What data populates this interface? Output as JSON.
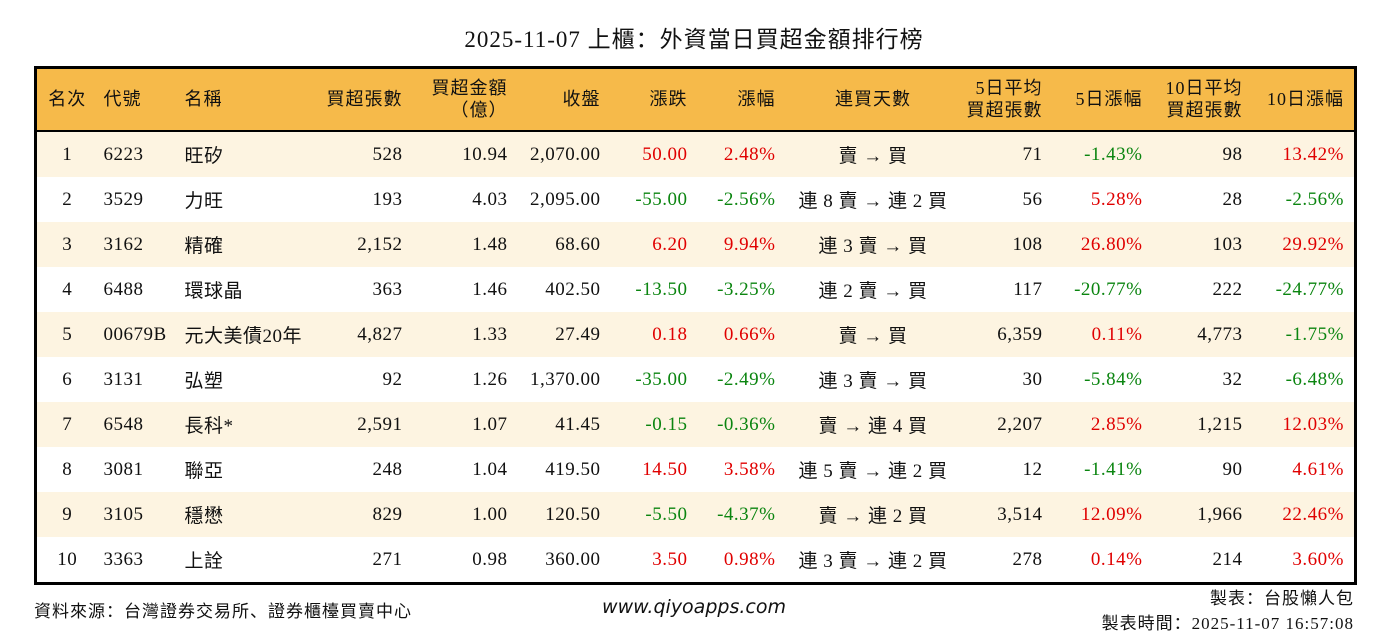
{
  "title": "2025-11-07 上櫃：外資當日買超金額排行榜",
  "colors": {
    "up": "#e00000",
    "down": "#0b8510",
    "header_bg": "#f6ba4a",
    "row_alt": "#fdf4e1"
  },
  "table": {
    "headers": [
      "名次",
      "代號",
      "名稱",
      "買超張數",
      "買超金額\n（億）",
      "收盤",
      "漲跌",
      "漲幅",
      "連買天數",
      "5日平均\n買超張數",
      "5日漲幅",
      "10日平均\n買超張數",
      "10日漲幅"
    ],
    "rows": [
      [
        "1",
        "6223",
        "旺矽",
        "528",
        "10.94",
        "2,070.00",
        "50.00",
        "2.48%",
        "賣 → 買",
        "71",
        "-1.43%",
        "98",
        "13.42%"
      ],
      [
        "2",
        "3529",
        "力旺",
        "193",
        "4.03",
        "2,095.00",
        "-55.00",
        "-2.56%",
        "連 8 賣 → 連 2 買",
        "56",
        "5.28%",
        "28",
        "-2.56%"
      ],
      [
        "3",
        "3162",
        "精確",
        "2,152",
        "1.48",
        "68.60",
        "6.20",
        "9.94%",
        "連 3 賣 → 買",
        "108",
        "26.80%",
        "103",
        "29.92%"
      ],
      [
        "4",
        "6488",
        "環球晶",
        "363",
        "1.46",
        "402.50",
        "-13.50",
        "-3.25%",
        "連 2 賣 → 買",
        "117",
        "-20.77%",
        "222",
        "-24.77%"
      ],
      [
        "5",
        "00679B",
        "元大美債20年",
        "4,827",
        "1.33",
        "27.49",
        "0.18",
        "0.66%",
        "賣 → 買",
        "6,359",
        "0.11%",
        "4,773",
        "-1.75%"
      ],
      [
        "6",
        "3131",
        "弘塑",
        "92",
        "1.26",
        "1,370.00",
        "-35.00",
        "-2.49%",
        "連 3 賣 → 買",
        "30",
        "-5.84%",
        "32",
        "-6.48%"
      ],
      [
        "7",
        "6548",
        "長科*",
        "2,591",
        "1.07",
        "41.45",
        "-0.15",
        "-0.36%",
        "賣 → 連 4 買",
        "2,207",
        "2.85%",
        "1,215",
        "12.03%"
      ],
      [
        "8",
        "3081",
        "聯亞",
        "248",
        "1.04",
        "419.50",
        "14.50",
        "3.58%",
        "連 5 賣 → 連 2 買",
        "12",
        "-1.41%",
        "90",
        "4.61%"
      ],
      [
        "9",
        "3105",
        "穩懋",
        "829",
        "1.00",
        "120.50",
        "-5.50",
        "-4.37%",
        "賣 → 連 2 買",
        "3,514",
        "12.09%",
        "1,966",
        "22.46%"
      ],
      [
        "10",
        "3363",
        "上詮",
        "271",
        "0.98",
        "360.00",
        "3.50",
        "0.98%",
        "連 3 賣 → 連 2 買",
        "278",
        "0.14%",
        "214",
        "3.60%"
      ]
    ]
  },
  "footer": {
    "source": "資料來源：台灣證券交易所、證券櫃檯買賣中心",
    "website": "www.qiyoapps.com",
    "author": "製表：台股懶人包",
    "timestamp": "製表時間：2025-11-07 16:57:08"
  }
}
